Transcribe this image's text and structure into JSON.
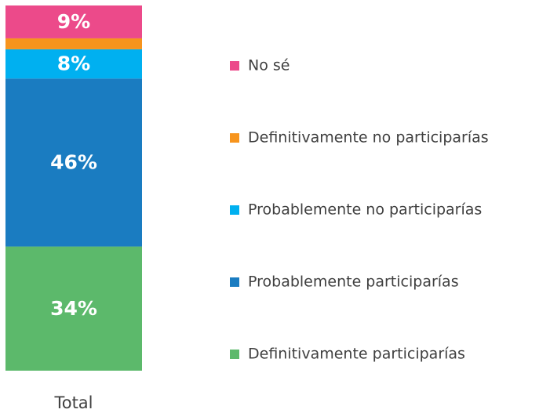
{
  "chart_data": {
    "type": "stacked_bar",
    "categories": [
      "Total"
    ],
    "series": [
      {
        "name": "Definitivamente participarías",
        "color": "#5cb96b",
        "values": [
          34
        ],
        "value_labels": [
          "34%"
        ]
      },
      {
        "name": "Probablemente participarías",
        "color": "#1a7cc1",
        "values": [
          46
        ],
        "value_labels": [
          "46%"
        ]
      },
      {
        "name": "Probablemente no participarías",
        "color": "#00b0f0",
        "values": [
          8
        ],
        "value_labels": [
          "8%"
        ]
      },
      {
        "name": "Definitivamente no participarías",
        "color": "#f7941d",
        "values": [
          3
        ]
      },
      {
        "name": "No sé",
        "color": "#ec4a8a",
        "values": [
          9
        ],
        "value_labels": [
          "9%"
        ]
      }
    ]
  }
}
